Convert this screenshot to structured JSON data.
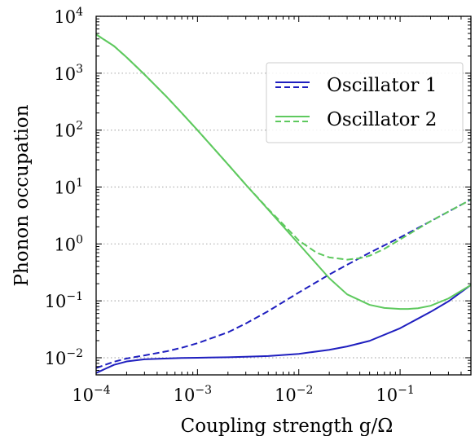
{
  "chart_data": {
    "type": "line",
    "xlabel": "Coupling strength g/Ω",
    "ylabel": "Phonon occupation",
    "x_scale": "log",
    "y_scale": "log",
    "xlim": [
      0.0001,
      0.5
    ],
    "ylim": [
      0.005,
      10000
    ],
    "x_ticks": [
      {
        "base": "10",
        "exp": "−4",
        "value": 0.0001
      },
      {
        "base": "10",
        "exp": "−3",
        "value": 0.001
      },
      {
        "base": "10",
        "exp": "−2",
        "value": 0.01
      },
      {
        "base": "10",
        "exp": "−1",
        "value": 0.1
      }
    ],
    "y_ticks": [
      {
        "base": "10",
        "exp": "−2",
        "value": 0.01
      },
      {
        "base": "10",
        "exp": "−1",
        "value": 0.1
      },
      {
        "base": "10",
        "exp": "0",
        "value": 1
      },
      {
        "base": "10",
        "exp": "1",
        "value": 10
      },
      {
        "base": "10",
        "exp": "2",
        "value": 100
      },
      {
        "base": "10",
        "exp": "3",
        "value": 1000
      },
      {
        "base": "10",
        "exp": "4",
        "value": 10000
      }
    ],
    "grid": "horizontal dotted",
    "legend_position": "top-right",
    "legend": [
      {
        "label": "Oscillator 1",
        "color": "#1f1fbf"
      },
      {
        "label": "Oscillator 2",
        "color": "#5ec95e"
      }
    ],
    "series": [
      {
        "color": "#1f1fbf",
        "style": "solid",
        "x": [
          0.0001,
          0.00015,
          0.0002,
          0.0003,
          0.0005,
          0.0007,
          0.001,
          0.002,
          0.003,
          0.005,
          0.01,
          0.02,
          0.03,
          0.05,
          0.1,
          0.2,
          0.3,
          0.5
        ],
        "y": [
          0.0054,
          0.0075,
          0.0086,
          0.0094,
          0.0097,
          0.0099,
          0.01,
          0.0102,
          0.0104,
          0.0107,
          0.0117,
          0.0138,
          0.0158,
          0.0198,
          0.033,
          0.064,
          0.098,
          0.19
        ]
      },
      {
        "color": "#1f1fbf",
        "style": "dashed",
        "x": [
          0.0001,
          0.00015,
          0.0002,
          0.0003,
          0.0005,
          0.0007,
          0.001,
          0.002,
          0.003,
          0.005,
          0.01,
          0.02,
          0.03,
          0.05,
          0.1,
          0.2,
          0.3,
          0.5
        ],
        "y": [
          0.0066,
          0.0085,
          0.0097,
          0.011,
          0.013,
          0.015,
          0.018,
          0.028,
          0.04,
          0.066,
          0.14,
          0.29,
          0.43,
          0.7,
          1.3,
          2.5,
          3.7,
          6.0
        ]
      },
      {
        "color": "#5ec95e",
        "style": "solid",
        "x": [
          0.0001,
          0.00015,
          0.0002,
          0.0003,
          0.0005,
          0.0007,
          0.001,
          0.002,
          0.003,
          0.005,
          0.01,
          0.02,
          0.03,
          0.05,
          0.07,
          0.1,
          0.12,
          0.15,
          0.2,
          0.3,
          0.5
        ],
        "y": [
          4800,
          3000,
          1900,
          950,
          380,
          200,
          100,
          25,
          11,
          4.0,
          1.0,
          0.25,
          0.13,
          0.085,
          0.075,
          0.072,
          0.072,
          0.074,
          0.082,
          0.11,
          0.19
        ]
      },
      {
        "color": "#5ec95e",
        "style": "dashed",
        "x": [
          0.0001,
          0.00015,
          0.0002,
          0.0003,
          0.0005,
          0.0007,
          0.001,
          0.002,
          0.003,
          0.005,
          0.01,
          0.015,
          0.02,
          0.03,
          0.04,
          0.05,
          0.07,
          0.1,
          0.2,
          0.3,
          0.5
        ],
        "y": [
          4800,
          3000,
          1900,
          950,
          380,
          200,
          100,
          25,
          11,
          4.1,
          1.15,
          0.7,
          0.58,
          0.53,
          0.56,
          0.62,
          0.82,
          1.2,
          2.5,
          3.7,
          6.0
        ]
      }
    ]
  }
}
